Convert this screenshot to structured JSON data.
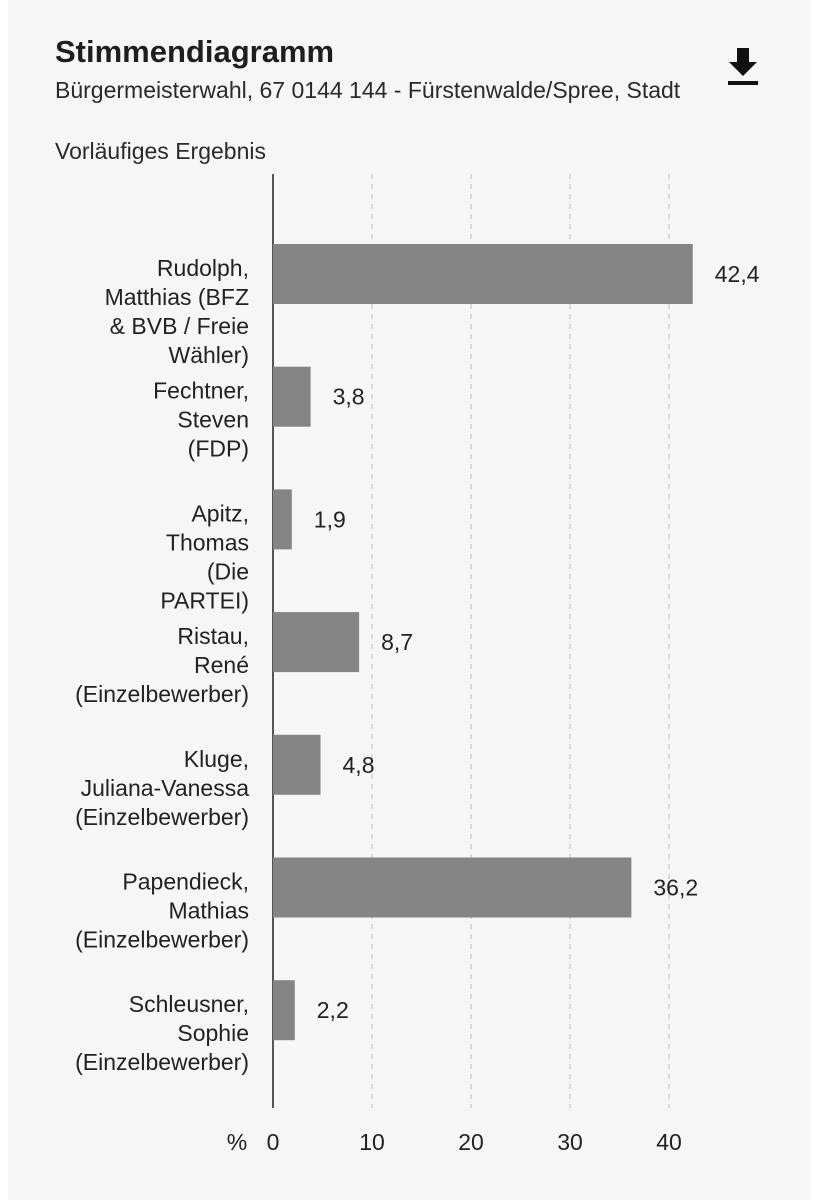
{
  "header": {
    "title": "Stimmendiagramm",
    "subtitle": "Bürgermeisterwahl, 67 0144 144 - Fürstenwalde/Spree, Stadt",
    "status": "Vorläufiges Ergebnis",
    "download_icon": "download-icon"
  },
  "chart_data": {
    "type": "bar",
    "orientation": "horizontal",
    "categories": [
      [
        "Rudolph,",
        "Matthias (BFZ",
        "& BVB / Freie",
        "Wähler)"
      ],
      [
        "Fechtner,",
        "Steven",
        "(FDP)"
      ],
      [
        "Apitz,",
        "Thomas",
        "(Die",
        "PARTEI)"
      ],
      [
        "Ristau,",
        "René",
        "(Einzelbewerber)"
      ],
      [
        "Kluge,",
        "Juliana-Vanessa",
        "(Einzelbewerber)"
      ],
      [
        "Papendieck,",
        "Mathias",
        "(Einzelbewerber)"
      ],
      [
        "Schleusner,",
        "Sophie",
        "(Einzelbewerber)"
      ]
    ],
    "values": [
      42.4,
      3.8,
      1.9,
      8.7,
      4.8,
      36.2,
      2.2
    ],
    "value_labels": [
      "42,4",
      "3,8",
      "1,9",
      "8,7",
      "4,8",
      "36,2",
      "2,2"
    ],
    "x_ticks": [
      0,
      10,
      20,
      30,
      40
    ],
    "x_tick_labels": [
      "0",
      "10",
      "20",
      "30",
      "40"
    ],
    "x_unit": "%",
    "xlim": [
      0,
      50
    ],
    "grid": true,
    "bar_color": "#858585",
    "grid_color": "#cfcfcf",
    "axis_color": "#555555"
  }
}
